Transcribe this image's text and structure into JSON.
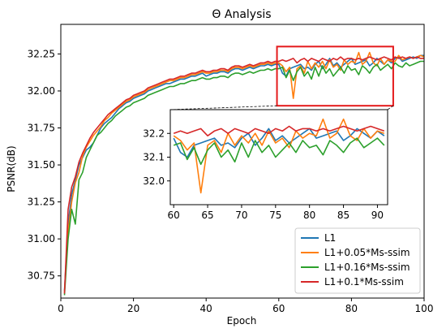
{
  "chart_data": {
    "type": "line",
    "title": "Θ Analysis",
    "xlabel": "Epoch",
    "ylabel": "PSNR(dB)",
    "xlim": [
      0,
      100
    ],
    "ylim": [
      30.6,
      32.45
    ],
    "x_ticks": [
      "0",
      "20",
      "40",
      "60",
      "80",
      "100"
    ],
    "y_ticks": [
      "30.75",
      "31.00",
      "31.25",
      "31.50",
      "31.75",
      "32.00",
      "32.25"
    ],
    "grid": false,
    "legend_position": "lower-right",
    "x": [
      1,
      2,
      3,
      4,
      5,
      6,
      7,
      8,
      9,
      10,
      11,
      12,
      13,
      14,
      15,
      16,
      17,
      18,
      19,
      20,
      21,
      22,
      23,
      24,
      25,
      26,
      27,
      28,
      29,
      30,
      31,
      32,
      33,
      34,
      35,
      36,
      37,
      38,
      39,
      40,
      41,
      42,
      43,
      44,
      45,
      46,
      47,
      48,
      49,
      50,
      51,
      52,
      53,
      54,
      55,
      56,
      57,
      58,
      59,
      60,
      61,
      62,
      63,
      64,
      65,
      66,
      67,
      68,
      69,
      70,
      71,
      72,
      73,
      74,
      75,
      76,
      77,
      78,
      79,
      80,
      81,
      82,
      83,
      84,
      85,
      86,
      87,
      88,
      89,
      90,
      91,
      92,
      93,
      94,
      95,
      96,
      97,
      98,
      99,
      100
    ],
    "series": [
      {
        "name": "L1",
        "color": "#1f77b4",
        "values": [
          30.65,
          31.1,
          31.3,
          31.4,
          31.5,
          31.55,
          31.6,
          31.62,
          31.65,
          31.7,
          31.75,
          31.78,
          31.8,
          31.82,
          31.85,
          31.88,
          31.9,
          31.92,
          31.93,
          31.95,
          31.96,
          31.97,
          31.98,
          32.0,
          32.01,
          32.02,
          32.03,
          32.04,
          32.05,
          32.05,
          32.06,
          32.07,
          32.08,
          32.08,
          32.09,
          32.1,
          32.1,
          32.11,
          32.12,
          32.1,
          32.11,
          32.12,
          32.12,
          32.13,
          32.13,
          32.12,
          32.14,
          32.15,
          32.15,
          32.14,
          32.15,
          32.16,
          32.15,
          32.16,
          32.17,
          32.17,
          32.18,
          32.17,
          32.18,
          32.18,
          32.12,
          32.1,
          32.15,
          32.16,
          32.17,
          32.18,
          32.15,
          32.16,
          32.14,
          32.18,
          32.2,
          32.15,
          32.18,
          32.22,
          32.17,
          32.19,
          32.16,
          32.18,
          32.2,
          32.22,
          32.18,
          32.19,
          32.2,
          32.21,
          32.17,
          32.19,
          32.22,
          32.2,
          32.18,
          32.21,
          32.19,
          32.22,
          32.23,
          32.2,
          32.21,
          32.22,
          32.23,
          32.22,
          32.24,
          32.24
        ]
      },
      {
        "name": "L1+0.05*Ms-ssim",
        "color": "#ff7f0e",
        "values": [
          30.64,
          31.05,
          31.25,
          31.38,
          31.45,
          31.56,
          31.62,
          31.66,
          31.7,
          31.73,
          31.76,
          31.8,
          31.82,
          31.85,
          31.87,
          31.89,
          31.91,
          31.93,
          31.94,
          31.96,
          31.97,
          31.98,
          31.99,
          32.01,
          32.02,
          32.03,
          32.04,
          32.05,
          32.06,
          32.07,
          32.07,
          32.08,
          32.09,
          32.09,
          32.1,
          32.11,
          32.11,
          32.12,
          32.13,
          32.12,
          32.12,
          32.13,
          32.13,
          32.14,
          32.14,
          32.13,
          32.15,
          32.16,
          32.16,
          32.15,
          32.16,
          32.17,
          32.16,
          32.17,
          32.18,
          32.18,
          32.19,
          32.18,
          32.19,
          32.19,
          32.17,
          32.13,
          32.16,
          31.95,
          32.15,
          32.17,
          32.12,
          32.2,
          32.15,
          32.19,
          32.16,
          32.2,
          32.15,
          32.21,
          32.16,
          32.18,
          32.14,
          32.21,
          32.18,
          32.2,
          32.19,
          32.26,
          32.18,
          32.2,
          32.26,
          32.19,
          32.17,
          32.22,
          32.18,
          32.21,
          32.2,
          32.2,
          32.24,
          32.21,
          32.22,
          32.23,
          32.22,
          32.23,
          32.24,
          32.23
        ]
      },
      {
        "name": "L1+0.16*Ms-ssim",
        "color": "#2ca02c",
        "values": [
          30.62,
          31.0,
          31.2,
          31.1,
          31.4,
          31.45,
          31.55,
          31.6,
          31.65,
          31.7,
          31.72,
          31.75,
          31.78,
          31.8,
          31.83,
          31.85,
          31.87,
          31.89,
          31.9,
          31.92,
          31.93,
          31.94,
          31.95,
          31.97,
          31.98,
          31.99,
          32.0,
          32.01,
          32.02,
          32.03,
          32.03,
          32.04,
          32.05,
          32.05,
          32.06,
          32.07,
          32.07,
          32.08,
          32.09,
          32.08,
          32.08,
          32.09,
          32.09,
          32.1,
          32.1,
          32.09,
          32.11,
          32.12,
          32.12,
          32.11,
          32.12,
          32.13,
          32.12,
          32.13,
          32.14,
          32.14,
          32.15,
          32.14,
          32.15,
          32.15,
          32.16,
          32.09,
          32.14,
          32.07,
          32.13,
          32.16,
          32.1,
          32.13,
          32.08,
          32.16,
          32.1,
          32.17,
          32.12,
          32.15,
          32.1,
          32.13,
          32.16,
          32.12,
          32.17,
          32.14,
          32.15,
          32.11,
          32.17,
          32.15,
          32.12,
          32.16,
          32.18,
          32.14,
          32.16,
          32.18,
          32.15,
          32.19,
          32.17,
          32.16,
          32.19,
          32.17,
          32.18,
          32.19,
          32.2,
          32.2
        ]
      },
      {
        "name": "L1+0.1*Ms-ssim",
        "color": "#d62728",
        "values": [
          30.63,
          31.2,
          31.35,
          31.42,
          31.52,
          31.58,
          31.63,
          31.68,
          31.72,
          31.75,
          31.78,
          31.81,
          31.84,
          31.86,
          31.88,
          31.9,
          31.92,
          31.94,
          31.95,
          31.97,
          31.98,
          31.99,
          32.0,
          32.02,
          32.03,
          32.04,
          32.05,
          32.06,
          32.07,
          32.08,
          32.08,
          32.09,
          32.1,
          32.1,
          32.11,
          32.12,
          32.12,
          32.13,
          32.14,
          32.13,
          32.13,
          32.14,
          32.14,
          32.15,
          32.15,
          32.14,
          32.16,
          32.17,
          32.17,
          32.16,
          32.17,
          32.18,
          32.17,
          32.18,
          32.19,
          32.19,
          32.2,
          32.19,
          32.2,
          32.2,
          32.21,
          32.2,
          32.21,
          32.22,
          32.19,
          32.21,
          32.22,
          32.2,
          32.22,
          32.21,
          32.2,
          32.22,
          32.21,
          32.2,
          32.22,
          32.21,
          32.23,
          32.21,
          32.22,
          32.22,
          32.21,
          32.22,
          32.21,
          32.22,
          32.23,
          32.22,
          32.21,
          32.22,
          32.23,
          32.22,
          32.21,
          32.23,
          32.22,
          32.23,
          32.22,
          32.23,
          32.22,
          32.23,
          32.22,
          32.22
        ]
      }
    ],
    "inset": {
      "xlim": [
        59.5,
        91.5
      ],
      "ylim": [
        31.9,
        32.3
      ],
      "x_ticks": [
        "60",
        "65",
        "70",
        "75",
        "80",
        "85",
        "90"
      ],
      "y_ticks": [
        "32.0",
        "32.1",
        "32.2"
      ],
      "zoom_box_color": "#e41a1c"
    }
  }
}
